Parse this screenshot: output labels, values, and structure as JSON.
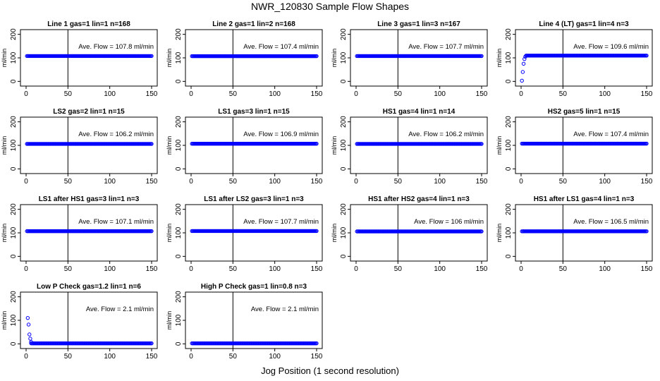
{
  "title": "NWR_120830  Sample Flow Shapes",
  "xlabel": "Jog Position (1 second resolution)",
  "colors": {
    "points": "#0000ff",
    "axes": "#000000"
  },
  "chart_data": [
    {
      "type": "scatter",
      "title": "Line 1 gas=1 lin=1 n=168",
      "ylabel": "ml/min",
      "annotation": "Ave. Flow = 107.8 ml/min",
      "xlim": [
        0,
        150
      ],
      "ylim": [
        -20,
        220
      ],
      "xticks": [
        0,
        50,
        100,
        150
      ],
      "yticks": [
        0,
        100,
        200
      ],
      "vline": 50,
      "x_range": [
        1,
        150
      ],
      "flow_value": 107.8,
      "initial_points": []
    },
    {
      "type": "scatter",
      "title": "Line 2 gas=1 lin=2 n=168",
      "ylabel": "ml/min",
      "annotation": "Ave. Flow = 107.4 ml/min",
      "xlim": [
        0,
        150
      ],
      "ylim": [
        -20,
        220
      ],
      "xticks": [
        0,
        50,
        100,
        150
      ],
      "yticks": [
        0,
        100,
        200
      ],
      "vline": 50,
      "x_range": [
        1,
        150
      ],
      "flow_value": 107.4,
      "initial_points": []
    },
    {
      "type": "scatter",
      "title": "Line 3 gas=1 lin=3 n=167",
      "ylabel": "ml/min",
      "annotation": "Ave. Flow = 107.7 ml/min",
      "xlim": [
        0,
        150
      ],
      "ylim": [
        -20,
        220
      ],
      "xticks": [
        0,
        50,
        100,
        150
      ],
      "yticks": [
        0,
        100,
        200
      ],
      "vline": 50,
      "x_range": [
        1,
        150
      ],
      "flow_value": 107.7,
      "initial_points": []
    },
    {
      "type": "scatter",
      "title": "Line 4 (LT) gas=1 lin=4 n=3",
      "ylabel": "ml/min",
      "annotation": "Ave. Flow = 109.6 ml/min",
      "xlim": [
        0,
        150
      ],
      "ylim": [
        -20,
        220
      ],
      "xticks": [
        0,
        50,
        100,
        150
      ],
      "yticks": [
        0,
        100,
        200
      ],
      "vline": 50,
      "x_range": [
        6,
        150
      ],
      "flow_value": 109.6,
      "initial_points": [
        [
          1,
          3
        ],
        [
          2,
          40
        ],
        [
          3,
          75
        ],
        [
          4,
          95
        ],
        [
          5,
          105
        ]
      ]
    },
    {
      "type": "scatter",
      "title": "LS2 gas=2 lin=1 n=15",
      "ylabel": "ml/min",
      "annotation": "Ave. Flow = 106.2 ml/min",
      "xlim": [
        0,
        150
      ],
      "ylim": [
        -20,
        220
      ],
      "xticks": [
        0,
        50,
        100,
        150
      ],
      "yticks": [
        0,
        100,
        200
      ],
      "vline": 50,
      "x_range": [
        1,
        150
      ],
      "flow_value": 106.2,
      "initial_points": []
    },
    {
      "type": "scatter",
      "title": "LS1 gas=3 lin=1 n=15",
      "ylabel": "ml/min",
      "annotation": "Ave. Flow = 106.9 ml/min",
      "xlim": [
        0,
        150
      ],
      "ylim": [
        -20,
        220
      ],
      "xticks": [
        0,
        50,
        100,
        150
      ],
      "yticks": [
        0,
        100,
        200
      ],
      "vline": 50,
      "x_range": [
        1,
        150
      ],
      "flow_value": 106.9,
      "initial_points": []
    },
    {
      "type": "scatter",
      "title": "HS1 gas=4 lin=1 n=14",
      "ylabel": "ml/min",
      "annotation": "Ave. Flow = 106.2 ml/min",
      "xlim": [
        0,
        150
      ],
      "ylim": [
        -20,
        220
      ],
      "xticks": [
        0,
        50,
        100,
        150
      ],
      "yticks": [
        0,
        100,
        200
      ],
      "vline": 50,
      "x_range": [
        1,
        150
      ],
      "flow_value": 106.2,
      "initial_points": []
    },
    {
      "type": "scatter",
      "title": "HS2 gas=5 lin=1 n=15",
      "ylabel": "ml/min",
      "annotation": "Ave. Flow = 107.4 ml/min",
      "xlim": [
        0,
        150
      ],
      "ylim": [
        -20,
        220
      ],
      "xticks": [
        0,
        50,
        100,
        150
      ],
      "yticks": [
        0,
        100,
        200
      ],
      "vline": 50,
      "x_range": [
        1,
        150
      ],
      "flow_value": 107.4,
      "initial_points": []
    },
    {
      "type": "scatter",
      "title": "LS1 after HS1 gas=3 lin=1 n=3",
      "ylabel": "ml/min",
      "annotation": "Ave. Flow = 107.1 ml/min",
      "xlim": [
        0,
        150
      ],
      "ylim": [
        -20,
        220
      ],
      "xticks": [
        0,
        50,
        100,
        150
      ],
      "yticks": [
        0,
        100,
        200
      ],
      "vline": 50,
      "x_range": [
        1,
        150
      ],
      "flow_value": 107.1,
      "initial_points": []
    },
    {
      "type": "scatter",
      "title": "LS1 after LS2 gas=3 lin=1 n=3",
      "ylabel": "ml/min",
      "annotation": "Ave. Flow = 107.7 ml/min",
      "xlim": [
        0,
        150
      ],
      "ylim": [
        -20,
        220
      ],
      "xticks": [
        0,
        50,
        100,
        150
      ],
      "yticks": [
        0,
        100,
        200
      ],
      "vline": 50,
      "x_range": [
        1,
        150
      ],
      "flow_value": 107.7,
      "initial_points": []
    },
    {
      "type": "scatter",
      "title": "HS1 after HS2 gas=4 lin=1 n=3",
      "ylabel": "ml/min",
      "annotation": "Ave. Flow = 106 ml/min",
      "xlim": [
        0,
        150
      ],
      "ylim": [
        -20,
        220
      ],
      "xticks": [
        0,
        50,
        100,
        150
      ],
      "yticks": [
        0,
        100,
        200
      ],
      "vline": 50,
      "x_range": [
        1,
        150
      ],
      "flow_value": 106,
      "initial_points": []
    },
    {
      "type": "scatter",
      "title": "HS1 after LS1 gas=4 lin=1 n=3",
      "ylabel": "ml/min",
      "annotation": "Ave. Flow = 106.5 ml/min",
      "xlim": [
        0,
        150
      ],
      "ylim": [
        -20,
        220
      ],
      "xticks": [
        0,
        50,
        100,
        150
      ],
      "yticks": [
        0,
        100,
        200
      ],
      "vline": 50,
      "x_range": [
        1,
        150
      ],
      "flow_value": 106.5,
      "initial_points": []
    },
    {
      "type": "scatter",
      "title": "Low P Check gas=1.2 lin=1 n=6",
      "ylabel": "ml/min",
      "annotation": "Ave. Flow = 2.1 ml/min",
      "xlim": [
        0,
        150
      ],
      "ylim": [
        -20,
        220
      ],
      "xticks": [
        0,
        50,
        100,
        150
      ],
      "yticks": [
        0,
        100,
        200
      ],
      "vline": 50,
      "x_range": [
        6,
        150
      ],
      "flow_value": 2.1,
      "initial_points": [
        [
          2,
          110
        ],
        [
          3,
          82
        ],
        [
          4,
          40
        ],
        [
          5,
          22
        ],
        [
          6,
          8
        ]
      ]
    },
    {
      "type": "scatter",
      "title": "High P Check gas=1 lin=0.8 n=3",
      "ylabel": "ml/min",
      "annotation": "Ave. Flow = 2.1 ml/min",
      "xlim": [
        0,
        150
      ],
      "ylim": [
        -20,
        220
      ],
      "xticks": [
        0,
        50,
        100,
        150
      ],
      "yticks": [
        0,
        100,
        200
      ],
      "vline": 50,
      "x_range": [
        1,
        150
      ],
      "flow_value": 2.1,
      "initial_points": []
    }
  ]
}
